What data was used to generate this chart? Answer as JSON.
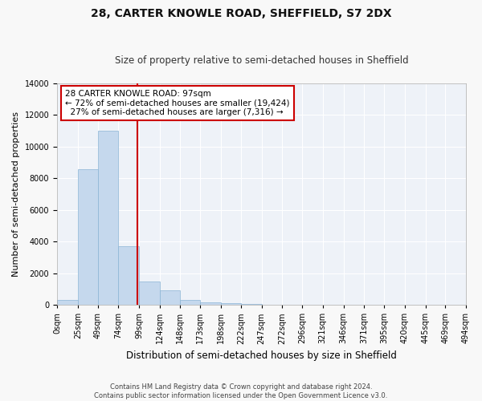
{
  "title": "28, CARTER KNOWLE ROAD, SHEFFIELD, S7 2DX",
  "subtitle": "Size of property relative to semi-detached houses in Sheffield",
  "xlabel": "Distribution of semi-detached houses by size in Sheffield",
  "ylabel": "Number of semi-detached properties",
  "property_label": "28 CARTER KNOWLE ROAD: 97sqm",
  "pct_smaller": 72,
  "pct_larger": 27,
  "count_smaller": "19,424",
  "count_larger": "7,316",
  "annotation_type": "semi-detached",
  "bar_edges": [
    0,
    25,
    49,
    74,
    99,
    124,
    148,
    173,
    198,
    222,
    247,
    272,
    296,
    321,
    346,
    371,
    395,
    420,
    445,
    469,
    494
  ],
  "bar_heights": [
    300,
    8600,
    11000,
    3700,
    1500,
    900,
    300,
    150,
    100,
    50,
    20,
    10,
    5,
    3,
    2,
    1,
    1,
    0,
    0,
    0
  ],
  "bar_color": "#c5d8ed",
  "bar_edgecolor": "#8ab4d4",
  "vline_x": 97,
  "vline_color": "#cc0000",
  "annotation_box_color": "#cc0000",
  "ylim": [
    0,
    14000
  ],
  "yticks": [
    0,
    2000,
    4000,
    6000,
    8000,
    10000,
    12000,
    14000
  ],
  "xlim": [
    0,
    494
  ],
  "background_color": "#eef2f8",
  "grid_color": "#ffffff",
  "fig_facecolor": "#f8f8f8",
  "footer": "Contains HM Land Registry data © Crown copyright and database right 2024.\nContains public sector information licensed under the Open Government Licence v3.0.",
  "title_fontsize": 10,
  "subtitle_fontsize": 8.5,
  "ylabel_fontsize": 8,
  "xlabel_fontsize": 8.5,
  "tick_fontsize": 7,
  "footer_fontsize": 6,
  "ann_fontsize": 7.5
}
